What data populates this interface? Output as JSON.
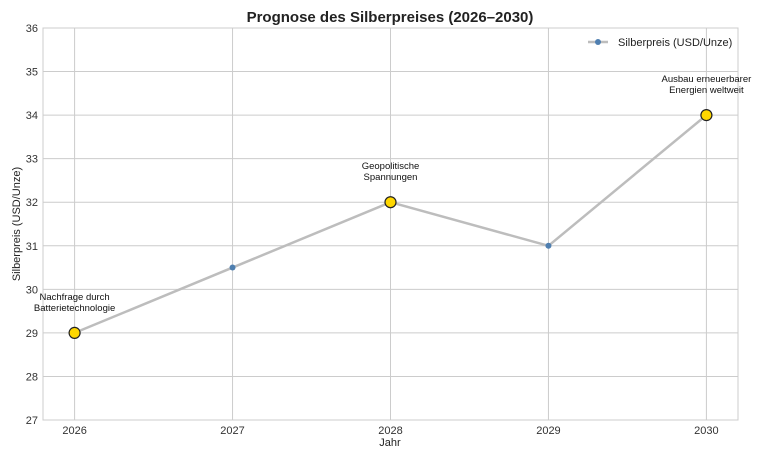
{
  "chart_data": {
    "type": "line",
    "title": "Prognose des Silberpreises (2026–2030)",
    "xlabel": "Jahr",
    "ylabel": "Silberpreis (USD/Unze)",
    "x": [
      2026,
      2027,
      2028,
      2029,
      2030
    ],
    "x_tick_labels": [
      "2026",
      "2027",
      "2028",
      "2029",
      "2030"
    ],
    "ylim": [
      27,
      36
    ],
    "y_ticks": [
      27,
      28,
      29,
      30,
      31,
      32,
      33,
      34,
      35,
      36
    ],
    "grid": true,
    "legend_position": "top-right",
    "series": [
      {
        "name": "Silberpreis (USD/Unze)",
        "values": [
          29.0,
          30.5,
          32.0,
          31.0,
          34.0
        ]
      }
    ],
    "highlighted_points": [
      {
        "x": 2026,
        "y": 29.0,
        "label_lines": [
          "Nachfrage durch",
          "Batterietechnologie"
        ]
      },
      {
        "x": 2028,
        "y": 32.0,
        "label_lines": [
          "Geopolitische",
          "Spannungen"
        ]
      },
      {
        "x": 2030,
        "y": 34.0,
        "label_lines": [
          "Ausbau erneuerbarer",
          "Energien weltweit"
        ]
      }
    ],
    "colors": {
      "line": "#bdbdbd",
      "marker": "#4f7fb0",
      "highlight_fill": "#ffd700",
      "highlight_edge": "#222222"
    }
  }
}
